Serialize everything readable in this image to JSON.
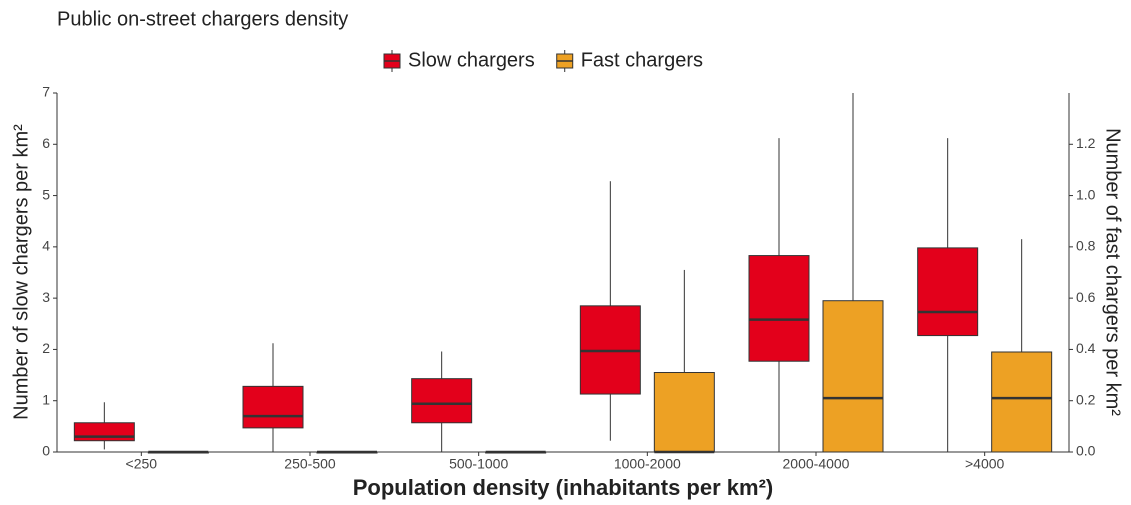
{
  "chart_data": {
    "type": "box",
    "title": "Public on-street chargers density",
    "x_label": "Population density (inhabitants per km²)",
    "y_label": "Number of slow chargers per km²",
    "y2_label": "Number of fast chargers per km²",
    "categories": [
      "<250",
      "250-500",
      "500-1000",
      "1000-2000",
      "2000-4000",
      ">4000"
    ],
    "ylim": [
      0,
      7
    ],
    "yticks": [
      0,
      1,
      2,
      3,
      4,
      5,
      6,
      7
    ],
    "y2lim": [
      0,
      1.4
    ],
    "y2ticks": [
      {
        "value": 0,
        "label": "0.0"
      },
      {
        "value": 0.2,
        "label": "0.2"
      },
      {
        "value": 0.4,
        "label": "0.4"
      },
      {
        "value": 0.6,
        "label": "0.6"
      },
      {
        "value": 0.8,
        "label": "0.8"
      },
      {
        "value": 1.0,
        "label": "1.0"
      },
      {
        "value": 1.2,
        "label": "1.2"
      }
    ],
    "legend": "top",
    "series": [
      {
        "name": "Slow chargers",
        "color": "#e3001b",
        "min": [
          0.05,
          0,
          0,
          0.22,
          0,
          0
        ],
        "q1": [
          0.22,
          0.47,
          0.57,
          1.13,
          1.77,
          2.27
        ],
        "median": [
          0.3,
          0.7,
          0.94,
          1.97,
          2.58,
          2.73
        ],
        "q3": [
          0.57,
          1.28,
          1.43,
          2.85,
          3.83,
          3.98
        ],
        "max": [
          0.97,
          2.12,
          1.96,
          5.28,
          6.12,
          6.12
        ]
      },
      {
        "name": "Fast chargers",
        "color": "#eda124",
        "axis": "y2",
        "min": [
          0,
          0,
          0,
          0,
          0,
          0
        ],
        "q1": [
          0,
          0,
          0,
          0,
          0,
          0
        ],
        "median": [
          0,
          0,
          0,
          0,
          0.21,
          0.21
        ],
        "q3": [
          0,
          0,
          0,
          0.31,
          0.59,
          0.39
        ],
        "max": [
          0,
          0,
          0,
          0.71,
          1.4,
          0.83
        ]
      }
    ]
  }
}
